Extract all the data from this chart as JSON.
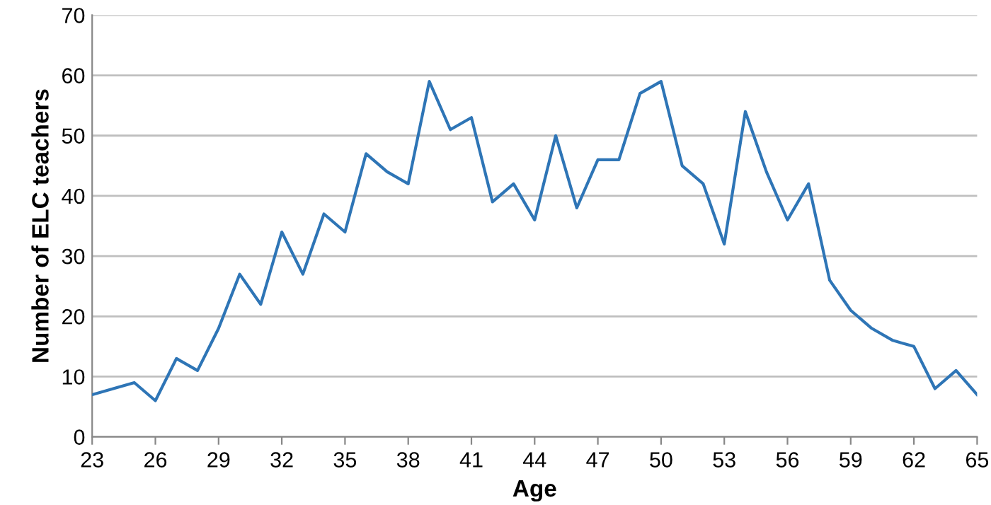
{
  "chart_data": {
    "type": "line",
    "xlabel": "Age",
    "ylabel": "Number of ELC teachers",
    "x": [
      23,
      24,
      25,
      26,
      27,
      28,
      29,
      30,
      31,
      32,
      33,
      34,
      35,
      36,
      37,
      38,
      39,
      40,
      41,
      42,
      43,
      44,
      45,
      46,
      47,
      48,
      49,
      50,
      51,
      52,
      53,
      54,
      55,
      56,
      57,
      58,
      59,
      60,
      61,
      62,
      63,
      64,
      65
    ],
    "series": [
      {
        "color": "#2e75b6",
        "values": [
          7,
          8,
          9,
          6,
          13,
          11,
          18,
          27,
          22,
          34,
          27,
          37,
          34,
          47,
          44,
          42,
          59,
          51,
          53,
          39,
          42,
          36,
          50,
          38,
          46,
          46,
          57,
          59,
          45,
          42,
          32,
          54,
          44,
          36,
          42,
          26,
          21,
          18,
          16,
          15,
          8,
          11,
          7
        ]
      }
    ],
    "xlim": [
      23,
      65
    ],
    "xticks": [
      23,
      26,
      29,
      32,
      35,
      38,
      41,
      44,
      47,
      50,
      53,
      56,
      59,
      62,
      65
    ],
    "ylim": [
      0,
      70
    ],
    "yticks": [
      0,
      10,
      20,
      30,
      40,
      50,
      60,
      70
    ],
    "grid": "y",
    "line_style": "solid",
    "marker": "none"
  }
}
